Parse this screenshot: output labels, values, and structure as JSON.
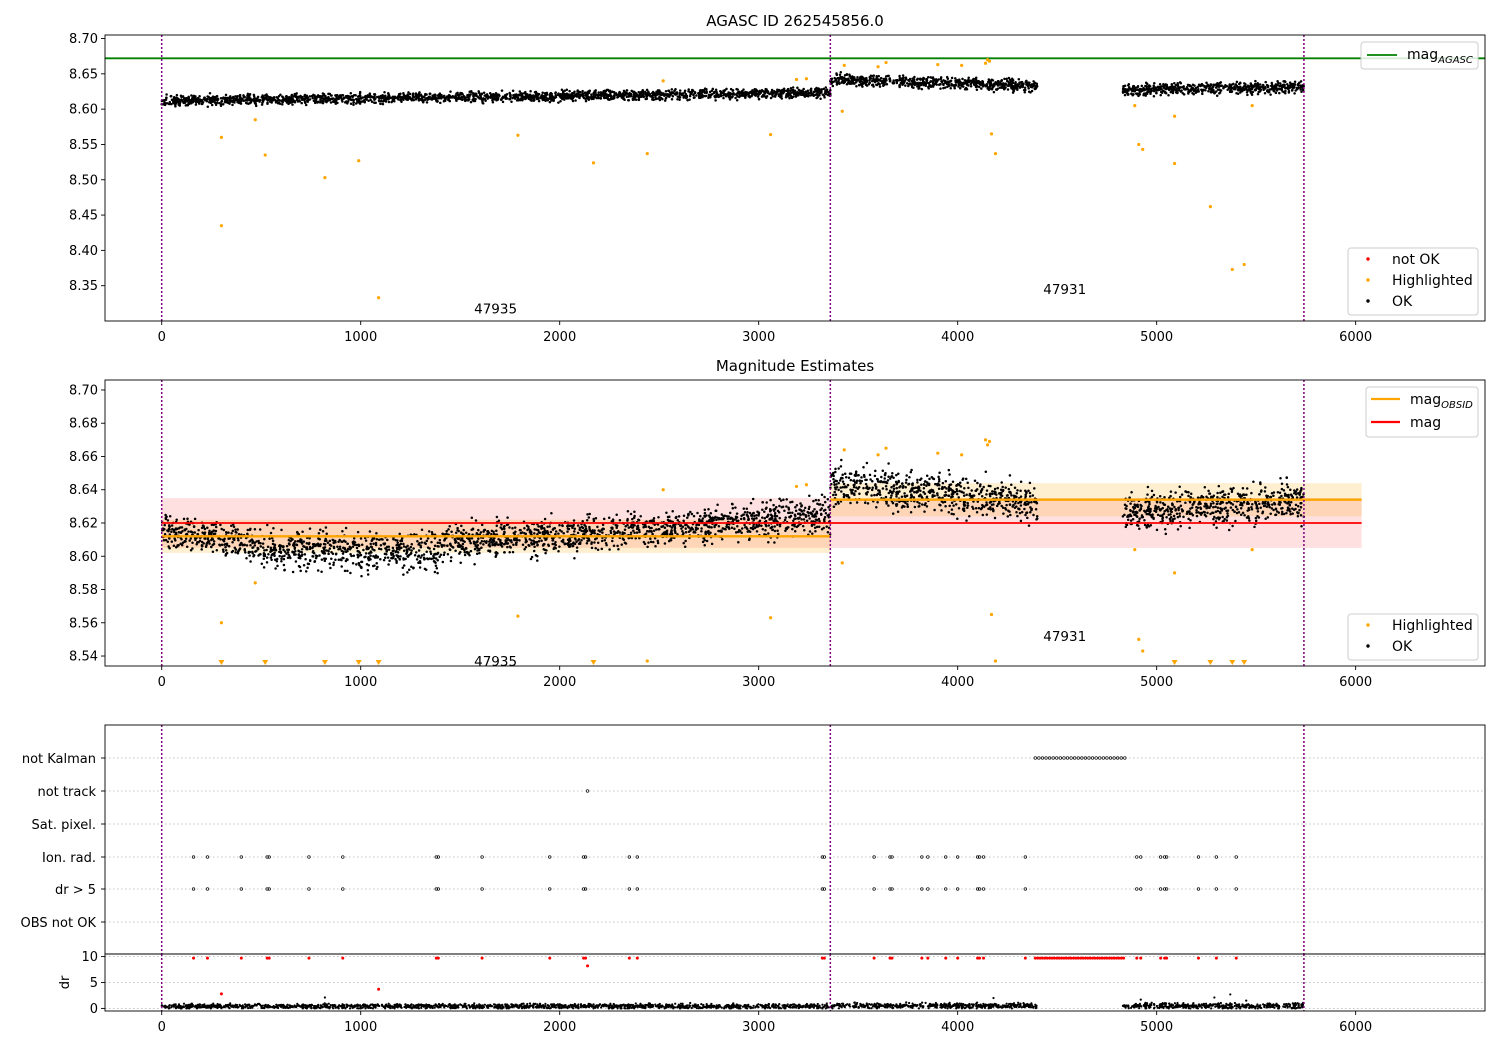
{
  "figure": {
    "panels": [
      {
        "title": "AGASC ID 262545856.0"
      },
      {
        "title": "Magnitude Estimates"
      },
      {
        "title": ""
      }
    ]
  },
  "colors": {
    "ok": "#000000",
    "highlighted": "#FFA500",
    "not_ok": "#FF0000",
    "agasc_line": "#008000",
    "mag_line": "#FF0000",
    "obsid_line": "#FFA500",
    "obsid_divider": "#800080",
    "grid": "#b0b0b0"
  },
  "chart_data": [
    {
      "type": "scatter",
      "title": "AGASC ID 262545856.0",
      "xlim": [
        -285,
        6650
      ],
      "ylim": [
        8.3,
        8.705
      ],
      "x_ticks": [
        0,
        1000,
        2000,
        3000,
        4000,
        5000,
        6000
      ],
      "y_ticks": [
        8.35,
        8.4,
        8.45,
        8.5,
        8.55,
        8.6,
        8.65,
        8.7
      ],
      "obsid_boundaries": [
        0,
        3360,
        5740
      ],
      "obsid_labels": [
        {
          "text": "47935",
          "x": 1570,
          "y": 8.318
        },
        {
          "text": "47931",
          "x": 4430,
          "y": 8.345
        }
      ],
      "hline": {
        "name": "mag",
        "subscript": "AGASC",
        "y": 8.672,
        "x_range": [
          -285,
          6650
        ]
      },
      "ok_segments": [
        {
          "x_range": [
            0,
            3360
          ],
          "y_start": 8.612,
          "y_end": 8.623,
          "spread": 0.006
        },
        {
          "x_range": [
            3360,
            4400
          ],
          "y_start": 8.642,
          "y_end": 8.633,
          "spread": 0.007
        },
        {
          "x_range": [
            4830,
            5740
          ],
          "y_start": 8.627,
          "y_end": 8.631,
          "spread": 0.007
        }
      ],
      "highlighted_points": [
        {
          "x": 300,
          "y": 8.56
        },
        {
          "x": 300,
          "y": 8.435
        },
        {
          "x": 470,
          "y": 8.585
        },
        {
          "x": 520,
          "y": 8.535
        },
        {
          "x": 820,
          "y": 8.503
        },
        {
          "x": 990,
          "y": 8.527
        },
        {
          "x": 1090,
          "y": 8.333
        },
        {
          "x": 1790,
          "y": 8.563
        },
        {
          "x": 2170,
          "y": 8.524
        },
        {
          "x": 2440,
          "y": 8.537
        },
        {
          "x": 2520,
          "y": 8.64
        },
        {
          "x": 3060,
          "y": 8.564
        },
        {
          "x": 3190,
          "y": 8.642
        },
        {
          "x": 3240,
          "y": 8.643
        },
        {
          "x": 3420,
          "y": 8.597
        },
        {
          "x": 3430,
          "y": 8.662
        },
        {
          "x": 3600,
          "y": 8.66
        },
        {
          "x": 3640,
          "y": 8.666
        },
        {
          "x": 3900,
          "y": 8.663
        },
        {
          "x": 4020,
          "y": 8.662
        },
        {
          "x": 4140,
          "y": 8.665
        },
        {
          "x": 4150,
          "y": 8.67
        },
        {
          "x": 4160,
          "y": 8.668
        },
        {
          "x": 4170,
          "y": 8.565
        },
        {
          "x": 4190,
          "y": 8.537
        },
        {
          "x": 4890,
          "y": 8.605
        },
        {
          "x": 4910,
          "y": 8.55
        },
        {
          "x": 4930,
          "y": 8.543
        },
        {
          "x": 5090,
          "y": 8.59
        },
        {
          "x": 5090,
          "y": 8.523
        },
        {
          "x": 5270,
          "y": 8.462
        },
        {
          "x": 5380,
          "y": 8.373
        },
        {
          "x": 5440,
          "y": 8.38
        },
        {
          "x": 5480,
          "y": 8.605
        }
      ],
      "legend": {
        "position": "lower-right",
        "entries": [
          {
            "label": "not OK",
            "color": "#FF0000"
          },
          {
            "label": "Highlighted",
            "color": "#FFA500"
          },
          {
            "label": "OK",
            "color": "#000000"
          }
        ]
      },
      "legend_top": {
        "position": "upper-right",
        "entry_name": "mag",
        "entry_subscript": "AGASC"
      }
    },
    {
      "type": "scatter",
      "title": "Magnitude Estimates",
      "xlim": [
        -285,
        6650
      ],
      "ylim": [
        8.534,
        8.706
      ],
      "x_ticks": [
        0,
        1000,
        2000,
        3000,
        4000,
        5000,
        6000
      ],
      "y_ticks": [
        8.54,
        8.56,
        8.58,
        8.6,
        8.62,
        8.64,
        8.66,
        8.68,
        8.7
      ],
      "obsid_boundaries": [
        0,
        3360,
        5740
      ],
      "obsid_labels": [
        {
          "text": "47935",
          "x": 1570,
          "y": 8.537
        },
        {
          "text": "47931",
          "x": 4430,
          "y": 8.552
        }
      ],
      "mag_line": {
        "name": "mag",
        "y": 8.62,
        "band": [
          8.605,
          8.635
        ],
        "x_range": [
          0,
          6030
        ]
      },
      "obsid_mag": [
        {
          "x_range": [
            0,
            3360
          ],
          "y": 8.612,
          "band": [
            8.602,
            8.622
          ]
        },
        {
          "x_range": [
            3360,
            6030
          ],
          "y": 8.634,
          "band": [
            8.624,
            8.644
          ]
        }
      ],
      "ok_segments": [
        {
          "x_range": [
            0,
            500
          ],
          "y_start": 8.616,
          "y_end": 8.606,
          "spread": 0.008
        },
        {
          "x_range": [
            500,
            1400
          ],
          "y_start": 8.604,
          "y_end": 8.603,
          "spread": 0.01
        },
        {
          "x_range": [
            1400,
            2500
          ],
          "y_start": 8.608,
          "y_end": 8.617,
          "spread": 0.009
        },
        {
          "x_range": [
            2500,
            3360
          ],
          "y_start": 8.617,
          "y_end": 8.625,
          "spread": 0.009
        },
        {
          "x_range": [
            3360,
            4400
          ],
          "y_start": 8.644,
          "y_end": 8.632,
          "spread": 0.01
        },
        {
          "x_range": [
            4830,
            5740
          ],
          "y_start": 8.626,
          "y_end": 8.633,
          "spread": 0.01
        }
      ],
      "highlighted_points": [
        {
          "x": 300,
          "y": 8.56
        },
        {
          "x": 470,
          "y": 8.584
        },
        {
          "x": 1790,
          "y": 8.564
        },
        {
          "x": 2440,
          "y": 8.537
        },
        {
          "x": 2520,
          "y": 8.64
        },
        {
          "x": 3060,
          "y": 8.563
        },
        {
          "x": 3190,
          "y": 8.642
        },
        {
          "x": 3240,
          "y": 8.643
        },
        {
          "x": 3420,
          "y": 8.596
        },
        {
          "x": 3430,
          "y": 8.664
        },
        {
          "x": 3600,
          "y": 8.661
        },
        {
          "x": 3640,
          "y": 8.665
        },
        {
          "x": 3900,
          "y": 8.662
        },
        {
          "x": 4020,
          "y": 8.661
        },
        {
          "x": 4140,
          "y": 8.67
        },
        {
          "x": 4150,
          "y": 8.667
        },
        {
          "x": 4160,
          "y": 8.669
        },
        {
          "x": 4170,
          "y": 8.565
        },
        {
          "x": 4190,
          "y": 8.537
        },
        {
          "x": 4890,
          "y": 8.604
        },
        {
          "x": 4910,
          "y": 8.55
        },
        {
          "x": 4930,
          "y": 8.543
        },
        {
          "x": 5090,
          "y": 8.59
        },
        {
          "x": 5480,
          "y": 8.604
        }
      ],
      "clipped_markers": [
        300,
        520,
        820,
        990,
        1090,
        2170,
        5090,
        5270,
        5380,
        5440
      ],
      "legend_top": {
        "position": "upper-right",
        "entries": [
          {
            "label": "mag",
            "subscript": "OBSID",
            "color": "#FFA500"
          },
          {
            "label": "mag",
            "subscript": "",
            "color": "#FF0000"
          }
        ]
      },
      "legend": {
        "position": "lower-right",
        "entries": [
          {
            "label": "Highlighted",
            "color": "#FFA500"
          },
          {
            "label": "OK",
            "color": "#000000"
          }
        ]
      }
    },
    {
      "type": "scatter",
      "title": "",
      "xlim": [
        -285,
        6650
      ],
      "x_ticks": [
        0,
        1000,
        2000,
        3000,
        4000,
        5000,
        6000
      ],
      "obsid_boundaries": [
        0,
        3360,
        5740
      ],
      "flag_rows": [
        "not Kalman",
        "not track",
        "Sat. pixel.",
        "Ion. rad.",
        "dr > 5",
        "OBS not OK"
      ],
      "flag_points": {
        "not Kalman": {
          "dense_range": [
            4390,
            4840
          ]
        },
        "not track": {
          "x": [
            2140
          ]
        },
        "Sat. pixel.": {
          "x": []
        },
        "Ion. rad.": {
          "x": [
            160,
            230,
            400,
            530,
            540,
            740,
            910,
            1380,
            1390,
            1610,
            1950,
            2120,
            2130,
            2350,
            2390,
            3320,
            3330,
            3580,
            3660,
            3670,
            3820,
            3850,
            3940,
            4000,
            4100,
            4110,
            4130,
            4340,
            4900,
            4920,
            5020,
            5040,
            5050,
            5210,
            5300,
            5400
          ]
        },
        "dr > 5": {
          "x": [
            160,
            230,
            400,
            530,
            540,
            740,
            910,
            1380,
            1390,
            1610,
            1950,
            2120,
            2130,
            2350,
            2390,
            3320,
            3330,
            3580,
            3660,
            3670,
            3820,
            3850,
            3940,
            4000,
            4100,
            4110,
            4130,
            4340,
            4900,
            4920,
            5020,
            5040,
            5050,
            5210,
            5300,
            5400
          ]
        },
        "OBS not OK": {
          "x": []
        }
      },
      "dr": {
        "ylabel": "dr",
        "ylim": [
          -0.5,
          10.5
        ],
        "y_ticks": [
          0,
          5,
          10
        ],
        "ok_segments": [
          {
            "x_range": [
              0,
              3360
            ],
            "y_mean": 0.4,
            "spread": 0.4
          },
          {
            "x_range": [
              3360,
              4400
            ],
            "y_mean": 0.5,
            "spread": 0.45
          },
          {
            "x_range": [
              4830,
              5740
            ],
            "y_mean": 0.5,
            "spread": 0.45
          }
        ],
        "ok_outliers": [
          {
            "x": 820,
            "y": 2.1
          },
          {
            "x": 4180,
            "y": 2.0
          },
          {
            "x": 5290,
            "y": 2.1
          },
          {
            "x": 5370,
            "y": 2.7
          },
          {
            "x": 5450,
            "y": 1.5
          },
          {
            "x": 4920,
            "y": 1.7
          }
        ],
        "not_ok_points": [
          {
            "x": 300,
            "y": 2.8
          },
          {
            "x": 1090,
            "y": 3.7
          },
          {
            "x": 2140,
            "y": 8.2
          },
          {
            "x": 160,
            "y": 9.7
          },
          {
            "x": 230,
            "y": 9.7
          },
          {
            "x": 400,
            "y": 9.7
          },
          {
            "x": 530,
            "y": 9.7
          },
          {
            "x": 540,
            "y": 9.7
          },
          {
            "x": 740,
            "y": 9.7
          },
          {
            "x": 910,
            "y": 9.7
          },
          {
            "x": 1380,
            "y": 9.7
          },
          {
            "x": 1390,
            "y": 9.7
          },
          {
            "x": 1610,
            "y": 9.7
          },
          {
            "x": 1950,
            "y": 9.7
          },
          {
            "x": 2120,
            "y": 9.7
          },
          {
            "x": 2130,
            "y": 9.7
          },
          {
            "x": 2350,
            "y": 9.7
          },
          {
            "x": 2390,
            "y": 9.7
          },
          {
            "x": 3320,
            "y": 9.7
          },
          {
            "x": 3330,
            "y": 9.7
          },
          {
            "x": 3580,
            "y": 9.7
          },
          {
            "x": 3660,
            "y": 9.7
          },
          {
            "x": 3670,
            "y": 9.7
          },
          {
            "x": 3820,
            "y": 9.7
          },
          {
            "x": 3850,
            "y": 9.7
          },
          {
            "x": 3940,
            "y": 9.7
          },
          {
            "x": 4000,
            "y": 9.7
          },
          {
            "x": 4100,
            "y": 9.7
          },
          {
            "x": 4110,
            "y": 9.7
          },
          {
            "x": 4130,
            "y": 9.7
          },
          {
            "x": 4340,
            "y": 9.7
          },
          {
            "x": 4900,
            "y": 9.7
          },
          {
            "x": 4920,
            "y": 9.7
          },
          {
            "x": 5020,
            "y": 9.7
          },
          {
            "x": 5040,
            "y": 9.7
          },
          {
            "x": 5050,
            "y": 9.7
          },
          {
            "x": 5210,
            "y": 9.7
          },
          {
            "x": 5300,
            "y": 9.7
          },
          {
            "x": 5400,
            "y": 9.7
          }
        ],
        "not_ok_dense_range": [
          4390,
          4840
        ],
        "not_ok_dense_y": 9.7
      }
    }
  ]
}
